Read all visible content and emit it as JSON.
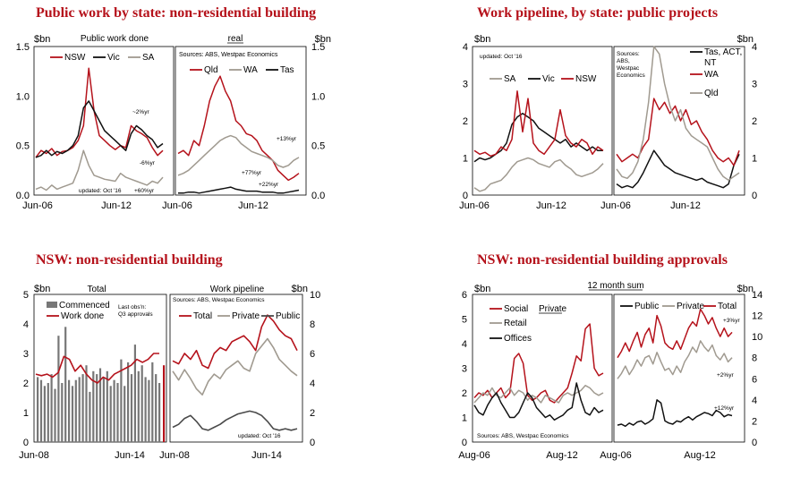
{
  "titles": [
    "Public work by state: non-residential building",
    "Work pipeline, by state: public projects",
    "NSW: non-residential building",
    "NSW: non-residential building approvals"
  ],
  "colors": {
    "red": "#b5121b",
    "black": "#111111",
    "grey": "#a09a90",
    "dark": "#4a4a4a"
  },
  "chart_data": [
    {
      "type": "line",
      "title": "Public work by state: non-residential building",
      "panel_labels": [
        "Public work done",
        "real"
      ],
      "ylabel_left": "$bn",
      "ylabel_right": "$bn",
      "ylim": [
        0,
        1.5
      ],
      "yticks": [
        "0.0",
        "0.5",
        "1.0",
        "1.5"
      ],
      "xticks_left": [
        "Jun-06",
        "Jun-12"
      ],
      "xticks_right": [
        "Jun-06",
        "Jun-12"
      ],
      "left_series": [
        {
          "name": "NSW",
          "color": "#b5121b",
          "values": [
            0.38,
            0.45,
            0.42,
            0.47,
            0.4,
            0.44,
            0.45,
            0.48,
            0.55,
            0.7,
            1.28,
            0.85,
            0.6,
            0.55,
            0.5,
            0.46,
            0.5,
            0.48,
            0.7,
            0.65,
            0.62,
            0.58,
            0.48,
            0.4,
            0.45
          ]
        },
        {
          "name": "Vic",
          "color": "#111111",
          "values": [
            0.38,
            0.4,
            0.45,
            0.4,
            0.44,
            0.42,
            0.45,
            0.5,
            0.6,
            0.88,
            0.95,
            0.85,
            0.75,
            0.65,
            0.6,
            0.55,
            0.5,
            0.45,
            0.62,
            0.7,
            0.66,
            0.6,
            0.56,
            0.48,
            0.52
          ]
        },
        {
          "name": "SA",
          "color": "#a09a90",
          "values": [
            0.06,
            0.08,
            0.05,
            0.1,
            0.06,
            0.08,
            0.1,
            0.12,
            0.25,
            0.45,
            0.3,
            0.2,
            0.18,
            0.16,
            0.15,
            0.14,
            0.22,
            0.18,
            0.16,
            0.14,
            0.12,
            0.1,
            0.14,
            0.12,
            0.18
          ]
        }
      ],
      "right_series": [
        {
          "name": "Qld",
          "color": "#b5121b",
          "values": [
            0.42,
            0.45,
            0.4,
            0.55,
            0.5,
            0.7,
            0.95,
            1.1,
            1.2,
            1.05,
            0.95,
            0.75,
            0.7,
            0.62,
            0.6,
            0.55,
            0.45,
            0.4,
            0.35,
            0.25,
            0.2,
            0.15,
            0.18,
            0.22
          ]
        },
        {
          "name": "WA",
          "color": "#a09a90",
          "values": [
            0.2,
            0.22,
            0.25,
            0.3,
            0.35,
            0.4,
            0.45,
            0.5,
            0.55,
            0.58,
            0.6,
            0.58,
            0.52,
            0.48,
            0.44,
            0.42,
            0.4,
            0.38,
            0.35,
            0.3,
            0.28,
            0.3,
            0.35,
            0.38
          ]
        },
        {
          "name": "Tas",
          "color": "#111111",
          "values": [
            0.02,
            0.02,
            0.03,
            0.03,
            0.02,
            0.03,
            0.04,
            0.05,
            0.06,
            0.07,
            0.08,
            0.06,
            0.05,
            0.04,
            0.04,
            0.04,
            0.03,
            0.03,
            0.03,
            0.02,
            0.02,
            0.03,
            0.04,
            0.05
          ]
        }
      ],
      "annotations": [
        "~2%yr",
        "-6%yr",
        "+60%yr",
        "updated: Oct '16",
        "+13%yr",
        "+77%yr",
        "+22%yr"
      ],
      "source_note": "Sources: ABS, Westpac Economics"
    },
    {
      "type": "line",
      "title": "Work pipeline, by state: public projects",
      "ylabel_left": "$bn",
      "ylabel_right": "$bn",
      "ylim": [
        0,
        4
      ],
      "yticks": [
        "0",
        "1",
        "2",
        "3",
        "4"
      ],
      "xticks_left": [
        "Jun-06",
        "Jun-12"
      ],
      "xticks_right": [
        "Jun-06",
        "Jun-12"
      ],
      "left_series": [
        {
          "name": "SA",
          "color": "#a09a90",
          "values": [
            0.2,
            0.1,
            0.15,
            0.3,
            0.35,
            0.4,
            0.55,
            0.75,
            0.9,
            0.95,
            1.0,
            0.95,
            0.85,
            0.8,
            0.75,
            0.9,
            0.95,
            0.8,
            0.7,
            0.55,
            0.5,
            0.55,
            0.6,
            0.7,
            0.85
          ]
        },
        {
          "name": "Vic",
          "color": "#111111",
          "values": [
            0.9,
            1.0,
            0.95,
            1.0,
            1.1,
            1.2,
            1.4,
            1.9,
            2.1,
            2.2,
            2.1,
            2.0,
            1.8,
            1.7,
            1.6,
            1.5,
            1.4,
            1.5,
            1.3,
            1.4,
            1.3,
            1.2,
            1.3,
            1.2,
            1.2
          ]
        },
        {
          "name": "NSW",
          "color": "#b5121b",
          "values": [
            1.2,
            1.1,
            1.15,
            1.05,
            1.1,
            1.3,
            1.2,
            1.5,
            2.8,
            1.7,
            2.6,
            1.4,
            1.2,
            1.1,
            1.3,
            1.5,
            2.3,
            1.6,
            1.4,
            1.3,
            1.5,
            1.4,
            1.1,
            1.3,
            1.2
          ]
        }
      ],
      "right_series": [
        {
          "name": "Tas, ACT, NT",
          "color": "#111111",
          "values": [
            0.3,
            0.2,
            0.25,
            0.2,
            0.35,
            0.6,
            0.9,
            1.2,
            1.0,
            0.8,
            0.7,
            0.6,
            0.55,
            0.5,
            0.45,
            0.4,
            0.45,
            0.35,
            0.3,
            0.25,
            0.2,
            0.3,
            0.8,
            1.1
          ]
        },
        {
          "name": "WA",
          "color": "#b5121b",
          "values": [
            1.1,
            0.9,
            1.0,
            1.1,
            1.0,
            1.3,
            1.5,
            2.6,
            2.3,
            2.5,
            2.2,
            2.4,
            2.0,
            2.3,
            1.9,
            2.0,
            1.7,
            1.5,
            1.2,
            1.0,
            0.9,
            1.0,
            0.8,
            1.2
          ]
        },
        {
          "name": "Qld",
          "color": "#a09a90",
          "values": [
            0.7,
            0.5,
            0.45,
            0.6,
            0.9,
            1.5,
            2.5,
            4.0,
            3.8,
            3.0,
            2.4,
            2.0,
            2.3,
            1.8,
            1.6,
            1.5,
            1.4,
            1.3,
            1.0,
            0.7,
            0.5,
            0.4,
            0.5,
            0.6
          ]
        }
      ],
      "annotations": [
        "updated: Oct '16"
      ],
      "source_note": "Sources: ABS, Westpac Economics"
    },
    {
      "type": "bar+line",
      "title": "NSW: non-residential building",
      "panel_labels": [
        "Total",
        "Work pipeline"
      ],
      "ylabel_left": "$bn",
      "ylabel_right": "$bn",
      "ylim_left": [
        0,
        5
      ],
      "ylim_right": [
        0,
        10
      ],
      "yticks_left": [
        "0",
        "1",
        "2",
        "3",
        "4",
        "5"
      ],
      "yticks_right": [
        "0",
        "2",
        "4",
        "6",
        "8",
        "10"
      ],
      "xticks_left": [
        "Jun-08",
        "Jun-14"
      ],
      "xticks_right": [
        "Jun-08",
        "Jun-14"
      ],
      "bars": {
        "name": "Commenced",
        "color": "#777777",
        "values": [
          2.2,
          2.1,
          1.9,
          2.0,
          2.3,
          1.8,
          3.6,
          2.0,
          3.9,
          2.1,
          1.9,
          2.1,
          2.2,
          2.3,
          2.6,
          1.7,
          2.4,
          2.3,
          2.5,
          2.2,
          2.4,
          1.9,
          2.1,
          2.0,
          2.8,
          1.9,
          2.7,
          2.3,
          3.3,
          2.4,
          2.6,
          2.2,
          2.1,
          2.7,
          2.3,
          2.0
        ],
        "last_value": 2.6
      },
      "left_series": [
        {
          "name": "Work done",
          "color": "#b5121b",
          "values": [
            2.3,
            2.25,
            2.3,
            2.2,
            2.35,
            2.9,
            2.8,
            2.4,
            2.6,
            2.3,
            2.1,
            2.0,
            2.2,
            2.1,
            2.3,
            2.4,
            2.5,
            2.6,
            2.8,
            2.7,
            2.8,
            3.0,
            3.0
          ]
        }
      ],
      "right_series": [
        {
          "name": "Total",
          "color": "#b5121b",
          "values": [
            5.5,
            5.3,
            6.0,
            5.6,
            6.2,
            5.2,
            5.0,
            6.0,
            6.4,
            6.2,
            6.8,
            7.0,
            7.2,
            6.8,
            6.2,
            7.8,
            8.6,
            8.2,
            7.6,
            7.2,
            7.0,
            6.2
          ]
        },
        {
          "name": "Private",
          "color": "#a09a90",
          "values": [
            4.8,
            4.2,
            4.9,
            4.3,
            3.6,
            3.2,
            4.1,
            4.6,
            4.3,
            4.9,
            5.2,
            5.5,
            5.0,
            4.8,
            6.0,
            6.5,
            7.0,
            6.4,
            5.6,
            5.2,
            4.8,
            4.5
          ]
        },
        {
          "name": "Public",
          "color": "#4a4a4a",
          "values": [
            1.0,
            1.2,
            1.6,
            1.8,
            1.4,
            0.9,
            0.8,
            1.0,
            1.2,
            1.5,
            1.7,
            1.9,
            2.0,
            2.1,
            2.0,
            1.8,
            1.4,
            0.9,
            0.8,
            0.9,
            0.8,
            0.9
          ]
        }
      ],
      "annotations": [
        "Last obs'n: Q3 approvals",
        "updated: Oct '16"
      ],
      "source_note": "Sources: ABS, Westpac Economics"
    },
    {
      "type": "line",
      "title": "NSW: non-residential building approvals",
      "panel_labels": [
        "12 month sum"
      ],
      "ylabel_left": "$bn",
      "ylabel_right": "$bn",
      "ylim_left": [
        0,
        6
      ],
      "ylim_right": [
        0,
        14
      ],
      "yticks_left": [
        "0",
        "1",
        "2",
        "3",
        "4",
        "5",
        "6"
      ],
      "yticks_right": [
        "0",
        "2",
        "4",
        "6",
        "8",
        "10",
        "12",
        "14"
      ],
      "xticks_left": [
        "Aug-06",
        "Aug-12"
      ],
      "xticks_right": [
        "Aug-06",
        "Aug-12"
      ],
      "left_series": [
        {
          "name": "Social",
          "color": "#b5121b",
          "values": [
            1.8,
            2.0,
            1.9,
            2.1,
            1.8,
            2.0,
            2.2,
            1.8,
            2.0,
            3.4,
            3.6,
            3.2,
            1.9,
            1.7,
            1.8,
            2.0,
            2.1,
            1.7,
            1.6,
            1.8,
            2.0,
            2.2,
            2.8,
            3.5,
            3.3,
            4.6,
            4.8,
            3.0,
            2.7,
            2.8
          ]
        },
        {
          "name": "Retail",
          "color": "#a09a90",
          "values": [
            1.6,
            1.8,
            2.0,
            1.9,
            2.2,
            1.9,
            1.8,
            2.0,
            2.2,
            1.9,
            2.1,
            2.0,
            1.7,
            1.9,
            1.8,
            1.6,
            1.9,
            1.8,
            1.7,
            1.6,
            1.9,
            2.0,
            1.9,
            2.0,
            2.1,
            2.3,
            2.2,
            2.0,
            1.9,
            2.0
          ]
        },
        {
          "name": "Offices",
          "color": "#111111",
          "values": [
            1.5,
            1.2,
            1.1,
            1.5,
            1.8,
            2.0,
            1.6,
            1.3,
            1.0,
            1.0,
            1.2,
            1.6,
            2.0,
            1.8,
            1.4,
            1.2,
            1.0,
            1.1,
            0.9,
            1.0,
            1.1,
            1.3,
            1.4,
            2.4,
            1.7,
            1.2,
            1.1,
            1.4,
            1.2,
            1.3
          ]
        }
      ],
      "right_series": [
        {
          "name": "Public",
          "color": "#111111",
          "values": [
            1.6,
            1.7,
            1.5,
            1.8,
            1.6,
            1.9,
            2.0,
            1.7,
            1.9,
            2.2,
            4.0,
            3.7,
            2.0,
            1.8,
            1.7,
            2.0,
            1.9,
            2.2,
            2.4,
            2.1,
            2.4,
            2.6,
            2.8,
            2.7,
            2.5,
            3.0,
            2.8,
            2.4,
            2.6,
            2.5
          ]
        },
        {
          "name": "Private",
          "color": "#a09a90",
          "values": [
            6.0,
            6.5,
            7.2,
            6.4,
            7.0,
            7.8,
            7.2,
            8.0,
            8.2,
            7.4,
            8.5,
            7.6,
            6.8,
            7.0,
            6.4,
            7.2,
            6.6,
            7.6,
            8.2,
            9.0,
            8.5,
            9.6,
            9.0,
            8.6,
            9.2,
            8.2,
            7.8,
            8.4,
            7.6,
            8.0
          ]
        },
        {
          "name": "Total",
          "color": "#b5121b",
          "values": [
            8.0,
            8.6,
            9.4,
            8.6,
            9.6,
            10.4,
            9.0,
            10.2,
            10.8,
            9.4,
            12.0,
            11.0,
            9.4,
            9.0,
            8.8,
            9.6,
            8.8,
            9.8,
            10.8,
            11.4,
            11.0,
            12.6,
            12.0,
            11.2,
            11.8,
            10.8,
            10.0,
            10.8,
            10.0,
            10.4
          ]
        }
      ],
      "annotations": [
        "+3%yr",
        "+2%yr",
        "+12%yr"
      ],
      "source_note": "Sources: ABS, Westpac Economics",
      "legend_group_label": "Private"
    }
  ]
}
